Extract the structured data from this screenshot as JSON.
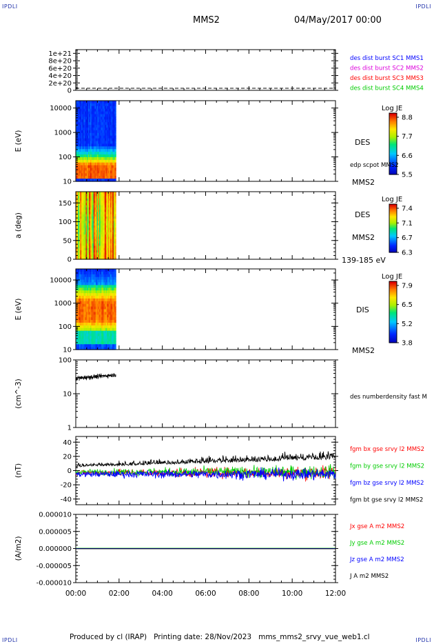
{
  "corner_label": "IPDLI",
  "header": {
    "title": "MMS2",
    "date": "04/May/2017 00:00"
  },
  "footer": "Produced by cl (IRAP)   Printing date: 28/Nov/2023   mms_mms2_srvy_vue_web1.cl",
  "colors": {
    "blue": "#0000ff",
    "magenta": "#dd00dd",
    "red": "#ff0000",
    "green": "#00cc00",
    "black": "#000000"
  },
  "chart_data": [
    {
      "type": "line",
      "ylim": [
        0,
        1.1e+21
      ],
      "ytick_labels": [
        "1e+21",
        "8e+20",
        "6e+20",
        "4e+20",
        "2e+20",
        "0"
      ],
      "ytick_values": [
        1e+21,
        8e+20,
        6e+20,
        4e+20,
        2e+20,
        0
      ],
      "legend": [
        {
          "label": "des dist burst SC1 MMS1",
          "color": "#0000ff"
        },
        {
          "label": "des dist burst SC2 MMS2",
          "color": "#dd00dd"
        },
        {
          "label": "des dist burst SC3 MMS3",
          "color": "#ff0000"
        },
        {
          "label": "des dist burst SC4 MMS4",
          "color": "#00cc00"
        }
      ]
    },
    {
      "type": "heatmap",
      "ylabel": "E (eV)",
      "yscale": "log",
      "ylim": [
        10,
        20000
      ],
      "ytick_labels": [
        "10000",
        "1000",
        "100",
        "10"
      ],
      "ytick_values": [
        10000,
        1000,
        100,
        10
      ],
      "data_end_hour": 1.85,
      "right_labels": [
        "DES",
        "edp scpot MMS2",
        "MMS2"
      ],
      "colorbar": {
        "title": "Log JE",
        "labels": [
          "8.8",
          "7.7",
          "6.6",
          "5.5"
        ]
      }
    },
    {
      "type": "heatmap",
      "ylabel": "a (deg)",
      "ylim": [
        0,
        180
      ],
      "ytick_labels": [
        "150",
        "100",
        "50",
        "0"
      ],
      "ytick_values": [
        150,
        100,
        50,
        0
      ],
      "data_end_hour": 1.85,
      "right_labels": [
        "DES",
        "MMS2",
        "139-185 eV"
      ],
      "colorbar": {
        "title": "Log JE",
        "labels": [
          "7.4",
          "7.1",
          "6.7",
          "6.3"
        ]
      }
    },
    {
      "type": "heatmap",
      "ylabel": "E (eV)",
      "yscale": "log",
      "ylim": [
        10,
        30000
      ],
      "ytick_labels": [
        "10000",
        "1000",
        "100",
        "10"
      ],
      "ytick_values": [
        10000,
        1000,
        100,
        10
      ],
      "data_end_hour": 1.85,
      "right_labels": [
        "DIS",
        "MMS2"
      ],
      "colorbar": {
        "title": "Log JE",
        "labels": [
          "7.9",
          "6.5",
          "5.2",
          "3.8"
        ]
      }
    },
    {
      "type": "line",
      "ylabel": "(cm^-3)",
      "yscale": "log",
      "ylim": [
        1,
        100
      ],
      "ytick_labels": [
        "100",
        "10",
        "1"
      ],
      "ytick_values": [
        100,
        10,
        1
      ],
      "data_hours": [
        0,
        1.85
      ],
      "density_range": [
        15,
        45
      ],
      "legend": [
        {
          "label": "des numberdensity fast M",
          "color": "#000000"
        }
      ]
    },
    {
      "type": "line",
      "ylabel": "(nT)",
      "ylim": [
        -48,
        48
      ],
      "ytick_labels": [
        "40",
        "20",
        "0",
        "-20",
        "-40"
      ],
      "ytick_values": [
        40,
        20,
        0,
        -20,
        -40
      ],
      "legend": [
        {
          "label": "fgm bx gse srvy l2 MMS2",
          "color": "#ff0000"
        },
        {
          "label": "fgm by gse srvy l2 MMS2",
          "color": "#00cc00"
        },
        {
          "label": "fgm bz gse srvy l2 MMS2",
          "color": "#0000ff"
        },
        {
          "label": "fgm bt gse srvy l2 MMS2",
          "color": "#000000"
        }
      ]
    },
    {
      "type": "line",
      "ylabel": "(A/m2)",
      "ylim": [
        -1e-05,
        1e-05
      ],
      "ytick_labels": [
        "0.000010",
        "0.000005",
        "0.000000",
        "-0.000005",
        "-0.000010"
      ],
      "ytick_values": [
        1e-05,
        5e-06,
        0,
        -5e-06,
        -1e-05
      ],
      "legend": [
        {
          "label": "Jx gse A m2 MMS2",
          "color": "#ff0000"
        },
        {
          "label": "Jy gse A m2 MMS2",
          "color": "#00cc00"
        },
        {
          "label": "Jz gse A m2 MMS2",
          "color": "#0000ff"
        },
        {
          "label": "J A m2 MMS2",
          "color": "#000000"
        }
      ]
    }
  ],
  "x_axis": {
    "tick_labels": [
      "00:00",
      "02:00",
      "04:00",
      "06:00",
      "08:00",
      "10:00",
      "12:00"
    ],
    "tick_hours": [
      0,
      2,
      4,
      6,
      8,
      10,
      12
    ],
    "xlim": [
      0,
      12
    ]
  }
}
